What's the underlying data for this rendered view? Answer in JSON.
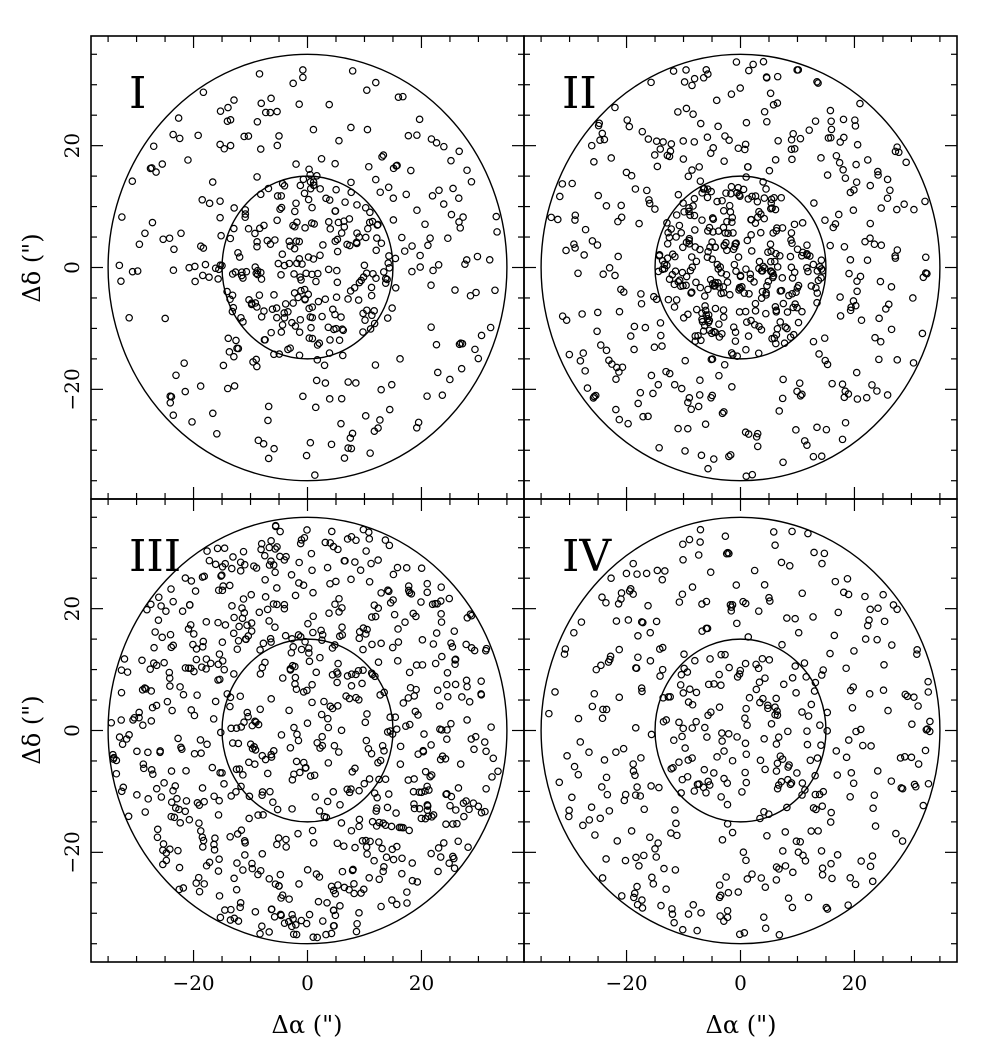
{
  "figure": {
    "panels": [
      "I",
      "II",
      "III",
      "IV"
    ],
    "x_axis_label": "Δα (\")",
    "y_axis_label": "Δδ (\")",
    "ink_color": "#000000",
    "background_color": "#ffffff"
  },
  "chart_data": [
    {
      "type": "scatter",
      "panel": "I",
      "xlim": [
        -38,
        38
      ],
      "ylim": [
        -38,
        38
      ],
      "xticks": [
        -20,
        0,
        20
      ],
      "yticks": [
        -20,
        0,
        20
      ],
      "grid": false,
      "circle_radii": [
        15,
        35
      ],
      "marker": "open-circle",
      "point_counts": {
        "inner": 210,
        "annulus": 230
      },
      "points_note_hidden": ""
    },
    {
      "type": "scatter",
      "panel": "II",
      "xlim": [
        -38,
        38
      ],
      "ylim": [
        -38,
        38
      ],
      "xticks": [
        -20,
        0,
        20
      ],
      "yticks": [
        -20,
        0,
        20
      ],
      "grid": false,
      "circle_radii": [
        15,
        35
      ],
      "marker": "open-circle",
      "point_counts": {
        "inner": 300,
        "annulus": 320
      }
    },
    {
      "type": "scatter",
      "panel": "III",
      "xlim": [
        -38,
        38
      ],
      "ylim": [
        -38,
        38
      ],
      "xticks": [
        -20,
        0,
        20
      ],
      "yticks": [
        -20,
        0,
        20
      ],
      "grid": false,
      "circle_radii": [
        15,
        35
      ],
      "marker": "open-circle",
      "point_counts": {
        "inner": 140,
        "annulus": 620
      }
    },
    {
      "type": "scatter",
      "panel": "IV",
      "xlim": [
        -38,
        38
      ],
      "ylim": [
        -38,
        38
      ],
      "xticks": [
        -20,
        0,
        20
      ],
      "yticks": [
        -20,
        0,
        20
      ],
      "grid": false,
      "circle_radii": [
        15,
        35
      ],
      "marker": "open-circle",
      "point_counts": {
        "inner": 130,
        "annulus": 320
      }
    }
  ]
}
